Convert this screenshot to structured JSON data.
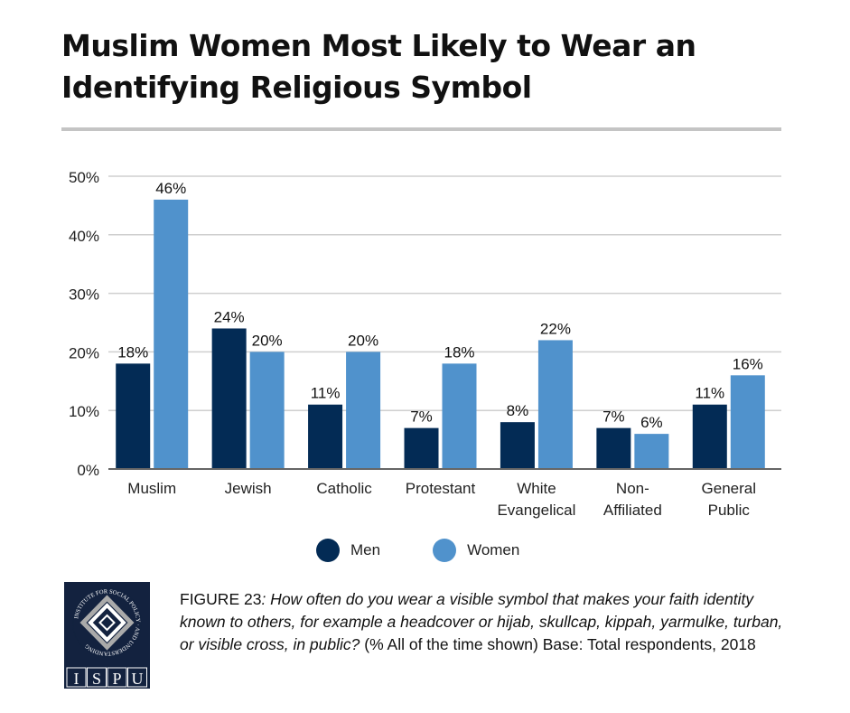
{
  "title": "Muslim Women Most Likely to Wear an Identifying Religious Symbol",
  "chart_data": {
    "type": "bar",
    "categories": [
      "Muslim",
      "Jewish",
      "Catholic",
      "Protestant",
      "White Evangelical",
      "Non-Affiliated",
      "General Public"
    ],
    "category_lines": [
      [
        "Muslim"
      ],
      [
        "Jewish"
      ],
      [
        "Catholic"
      ],
      [
        "Protestant"
      ],
      [
        "White",
        "Evangelical"
      ],
      [
        "Non-",
        "Affiliated"
      ],
      [
        "General",
        "Public"
      ]
    ],
    "series": [
      {
        "name": "Men",
        "color": "#032b55",
        "values": [
          18,
          24,
          11,
          7,
          8,
          7,
          11
        ]
      },
      {
        "name": "Women",
        "color": "#5092cc",
        "values": [
          46,
          20,
          20,
          18,
          22,
          6,
          16
        ]
      }
    ],
    "ylim": [
      0,
      50
    ],
    "yticks": [
      "0%",
      "10%",
      "20%",
      "30%",
      "40%",
      "50%"
    ],
    "ytick_values": [
      0,
      10,
      20,
      30,
      40,
      50
    ],
    "grid": true,
    "legend": "bottom"
  },
  "legend": {
    "men": "Men",
    "women": "Women"
  },
  "logo": {
    "text": "INSTITUTE FOR SOCIAL POLICY AND UNDERSTANDING",
    "letters": [
      "I",
      "S",
      "P",
      "U"
    ]
  },
  "caption": {
    "label": "FIGURE 23",
    "question": ": How often do you wear a visible symbol that makes your faith identity known to others, for example a headcover or hijab, skullcap, kippah, yarmulke, turban, or visible cross, in public?",
    "note": " (% All of the time shown) Base: Total respondents, 2018"
  }
}
